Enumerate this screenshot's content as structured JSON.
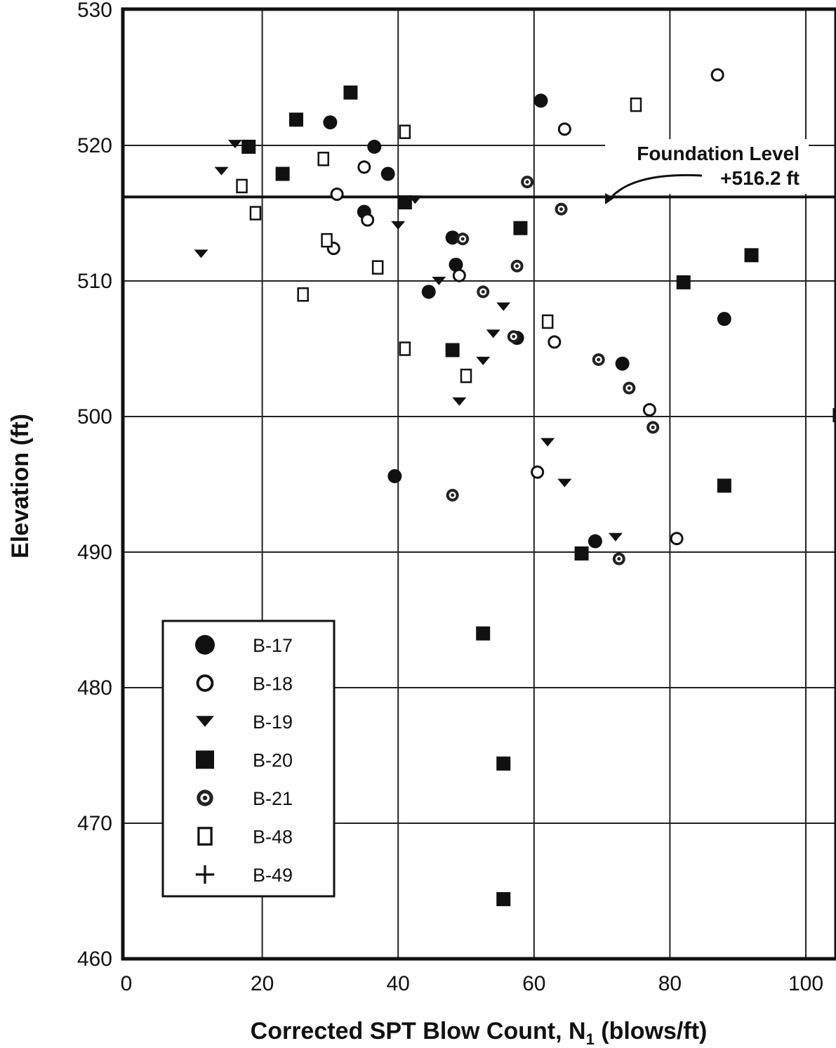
{
  "chart_data": {
    "type": "scatter",
    "title": "",
    "xlabel": "Corrected SPT Blow Count, N",
    "xlabel_subscript": "1",
    "xlabel_units": " (blows/ft)",
    "ylabel": "Elevation (ft)",
    "xlim": [
      0,
      105
    ],
    "ylim": [
      460,
      530
    ],
    "x_ticks": [
      0,
      20,
      40,
      60,
      80,
      100
    ],
    "y_ticks": [
      460,
      470,
      480,
      490,
      500,
      510,
      520,
      530
    ],
    "grid": true,
    "legend_position": "lower-left",
    "annotation": {
      "line1": "Foundation Level",
      "line2": "+516.2 ft",
      "elevation": 516.2,
      "arrow_x": 70
    },
    "series": [
      {
        "name": "B-17",
        "marker": "filled-circle",
        "x": [
          61,
          30,
          36.5,
          38.5,
          35,
          48,
          48.5,
          44.5,
          57.5,
          73,
          88,
          39.5,
          69
        ],
        "y": [
          523.3,
          521.7,
          519.9,
          517.9,
          515.1,
          513.2,
          511.2,
          509.2,
          505.8,
          503.9,
          507.2,
          495.6,
          490.8
        ]
      },
      {
        "name": "B-18",
        "marker": "open-circle",
        "x": [
          87,
          64.5,
          35,
          31,
          35.5,
          30.5,
          49,
          63,
          77,
          60.5,
          81
        ],
        "y": [
          525.2,
          521.2,
          518.4,
          516.4,
          514.5,
          512.4,
          510.4,
          505.5,
          500.5,
          495.9,
          491.0
        ]
      },
      {
        "name": "B-19",
        "marker": "filled-triangle-down",
        "x": [
          16,
          14,
          42.5,
          40,
          11,
          46,
          55.5,
          54,
          52.5,
          49,
          62,
          64.5,
          72
        ],
        "y": [
          520.1,
          518.1,
          516.0,
          514.1,
          512.0,
          510.0,
          508.1,
          506.1,
          504.1,
          501.1,
          498.1,
          495.1,
          491.1
        ]
      },
      {
        "name": "B-20",
        "marker": "filled-square",
        "x": [
          33,
          25,
          18,
          23,
          41,
          58,
          48,
          82,
          92,
          88,
          67,
          52.5,
          55.5,
          55.5,
          105
        ],
        "y": [
          523.9,
          521.9,
          519.9,
          517.9,
          515.8,
          513.9,
          504.9,
          509.9,
          511.9,
          494.9,
          489.9,
          484.0,
          474.4,
          464.4,
          500.1
        ]
      },
      {
        "name": "B-21",
        "marker": "dot-circle",
        "x": [
          59,
          64,
          49.5,
          57.5,
          52.5,
          57,
          69.5,
          74,
          77.5,
          48,
          72.5
        ],
        "y": [
          517.3,
          515.3,
          513.1,
          511.1,
          509.2,
          505.9,
          504.2,
          502.1,
          499.2,
          494.2,
          489.5
        ]
      },
      {
        "name": "B-48",
        "marker": "open-square",
        "x": [
          41,
          75,
          29,
          17,
          19,
          29.5,
          37,
          26,
          62,
          41,
          50
        ],
        "y": [
          521.0,
          523.0,
          519.0,
          517.0,
          515.0,
          513.0,
          511.0,
          509.0,
          507.0,
          505.0,
          503.0
        ]
      },
      {
        "name": "B-49",
        "marker": "plus",
        "x": [],
        "y": []
      }
    ]
  }
}
